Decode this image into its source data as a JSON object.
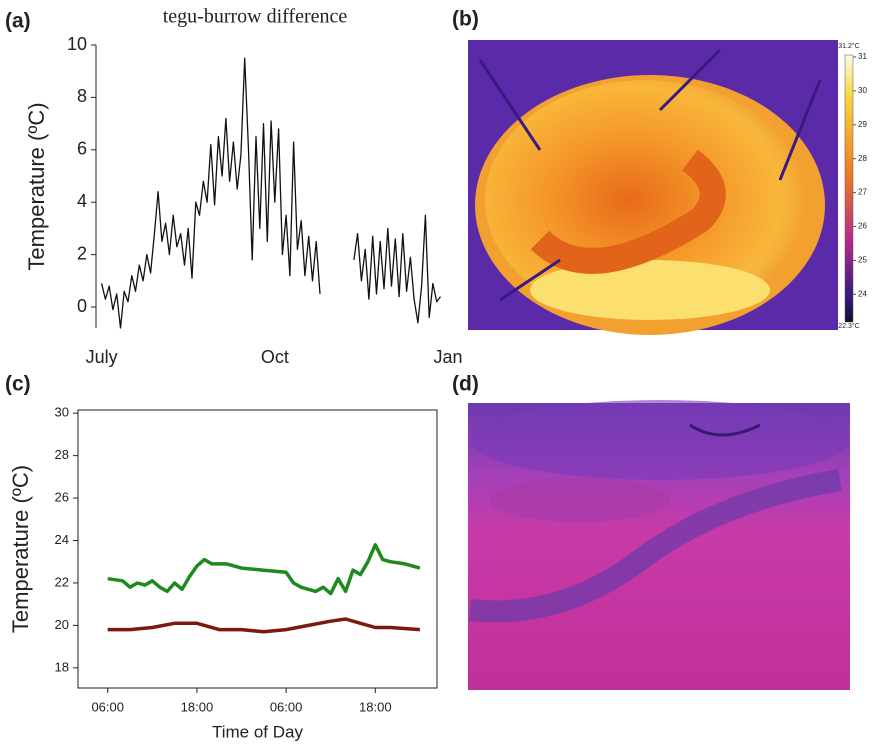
{
  "chart_data": [
    {
      "type": "line",
      "panel_label": "(a)",
      "title": "tegu-burrow difference",
      "y_label": "Temperature (ºC)",
      "color": "#111",
      "x": [
        0,
        2,
        4,
        6,
        8,
        10,
        12,
        14,
        16,
        18,
        20,
        22,
        24,
        26,
        28,
        30,
        32,
        34,
        36,
        38,
        40,
        42,
        44,
        46,
        48,
        50,
        52,
        54,
        56,
        58,
        60,
        62,
        64,
        66,
        68,
        70,
        72,
        74,
        76,
        78,
        80,
        82,
        84,
        86,
        88,
        90,
        92,
        94,
        96,
        98,
        100,
        102,
        104,
        106,
        108,
        110,
        112,
        114,
        116,
        125,
        134,
        136,
        138,
        140,
        142,
        144,
        146,
        148,
        150,
        152,
        154,
        156,
        158,
        160,
        162,
        164,
        166,
        168,
        170,
        172,
        174,
        176,
        178,
        180
      ],
      "values": [
        0.9,
        0.3,
        0.8,
        -0.1,
        0.5,
        -0.8,
        0.6,
        0.2,
        1.2,
        0.6,
        1.6,
        1.0,
        2.0,
        1.3,
        2.8,
        4.4,
        2.5,
        3.2,
        2.0,
        3.5,
        2.3,
        2.8,
        1.6,
        3.0,
        1.1,
        4.0,
        3.5,
        4.8,
        4.0,
        6.2,
        3.9,
        6.5,
        5.0,
        7.2,
        4.8,
        6.3,
        4.5,
        5.8,
        9.5,
        6.0,
        1.8,
        6.5,
        3.0,
        7.0,
        2.5,
        7.1,
        4.0,
        6.8,
        2.0,
        3.5,
        1.2,
        6.3,
        2.2,
        3.3,
        1.2,
        2.7,
        1.0,
        2.5,
        0.5,
        null,
        1.8,
        2.8,
        1.0,
        2.2,
        0.3,
        2.7,
        0.5,
        2.5,
        0.7,
        3.0,
        0.8,
        2.6,
        0.4,
        2.8,
        0.6,
        1.9,
        0.3,
        -0.6,
        0.8,
        3.5,
        -0.4,
        0.9,
        0.2,
        0.4
      ],
      "xlim": [
        -3,
        184
      ],
      "xticks": [
        {
          "value": 0,
          "label": "July"
        },
        {
          "value": 92,
          "label": "Oct"
        },
        {
          "value": 184,
          "label": "Jan"
        }
      ],
      "ylim": [
        -0.8,
        10
      ],
      "yticks": [
        0,
        2,
        4,
        6,
        8,
        10
      ]
    },
    {
      "type": "line",
      "panel_label": "(c)",
      "x_label": "Time of Day",
      "y_label": "Temperature (ºC)",
      "xlim": [
        2,
        50.3
      ],
      "xticks": [
        {
          "value": 6,
          "label": "06:00"
        },
        {
          "value": 18,
          "label": "18:00"
        },
        {
          "value": 30,
          "label": "06:00"
        },
        {
          "value": 42,
          "label": "18:00"
        }
      ],
      "ylim": [
        17.05,
        30.15
      ],
      "yticks": [
        18,
        20,
        22,
        24,
        26,
        28,
        30
      ],
      "series": [
        {
          "color": "#1e8a1e",
          "x": [
            6,
            8,
            9,
            10,
            11,
            12,
            13,
            14,
            15,
            16,
            17,
            18,
            19,
            20,
            22,
            24,
            27,
            30,
            31,
            32,
            34,
            35,
            36,
            37,
            38,
            39,
            40,
            41,
            42,
            43,
            44,
            46,
            48
          ],
          "values": [
            22.2,
            22.1,
            21.8,
            22.0,
            21.9,
            22.1,
            21.8,
            21.6,
            22.0,
            21.7,
            22.3,
            22.8,
            23.1,
            22.9,
            22.9,
            22.7,
            22.6,
            22.5,
            22.0,
            21.8,
            21.6,
            21.8,
            21.5,
            22.2,
            21.6,
            22.6,
            22.4,
            23.0,
            23.8,
            23.1,
            23.0,
            22.9,
            22.7
          ]
        },
        {
          "color": "#7a1a10",
          "x": [
            6,
            9,
            12,
            15,
            18,
            21,
            24,
            27,
            30,
            33,
            36,
            38,
            40,
            42,
            44,
            48
          ],
          "values": [
            19.8,
            19.8,
            19.9,
            20.1,
            20.1,
            19.8,
            19.8,
            19.7,
            19.8,
            20.0,
            20.2,
            20.3,
            20.1,
            19.9,
            19.9,
            19.8
          ]
        }
      ]
    }
  ],
  "images": [
    {
      "panel_label": "(b)",
      "colorbar": {
        "max_label": "31.2°C",
        "min_label": "22.3°C",
        "ticks": [
          31,
          30,
          29,
          28,
          27,
          26,
          25,
          24
        ]
      }
    },
    {
      "panel_label": "(d)"
    }
  ]
}
